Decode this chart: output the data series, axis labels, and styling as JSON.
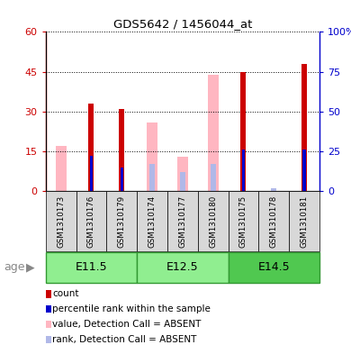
{
  "title": "GDS5642 / 1456044_at",
  "samples": [
    "GSM1310173",
    "GSM1310176",
    "GSM1310179",
    "GSM1310174",
    "GSM1310177",
    "GSM1310180",
    "GSM1310175",
    "GSM1310178",
    "GSM1310181"
  ],
  "age_groups": [
    {
      "label": "E11.5",
      "indices": [
        0,
        1,
        2
      ]
    },
    {
      "label": "E12.5",
      "indices": [
        3,
        4,
        5
      ]
    },
    {
      "label": "E14.5",
      "indices": [
        6,
        7,
        8
      ]
    }
  ],
  "red_count": [
    0,
    33,
    31,
    0,
    0,
    0,
    45,
    0,
    48
  ],
  "blue_rank": [
    0,
    22,
    15,
    0,
    0,
    0,
    26,
    0,
    26
  ],
  "pink_value": [
    17,
    0,
    0,
    26,
    13,
    44,
    0,
    0,
    0
  ],
  "lightblue_rank": [
    0,
    0,
    0,
    17,
    12,
    17,
    0,
    2,
    0
  ],
  "ylim_left": [
    0,
    60
  ],
  "ylim_right": [
    0,
    100
  ],
  "yticks_left": [
    0,
    15,
    30,
    45,
    60
  ],
  "yticks_right": [
    0,
    25,
    50,
    75,
    100
  ],
  "yticklabels_left": [
    "0",
    "15",
    "30",
    "45",
    "60"
  ],
  "yticklabels_right": [
    "0",
    "25",
    "50",
    "75",
    "100%"
  ],
  "colors": {
    "red": "#CC0000",
    "blue": "#0000CC",
    "pink": "#FFB6C1",
    "lightblue": "#B0B8E8",
    "green_light": "#90EE90",
    "green_mid": "#50C850",
    "gray_bg": "#D8D8D8",
    "axis_left_color": "#CC0000",
    "axis_right_color": "#0000CC"
  },
  "legend_items": [
    {
      "color": "#CC0000",
      "label": "count"
    },
    {
      "color": "#0000CC",
      "label": "percentile rank within the sample"
    },
    {
      "color": "#FFB6C1",
      "label": "value, Detection Call = ABSENT"
    },
    {
      "color": "#B0B8E8",
      "label": "rank, Detection Call = ABSENT"
    }
  ]
}
